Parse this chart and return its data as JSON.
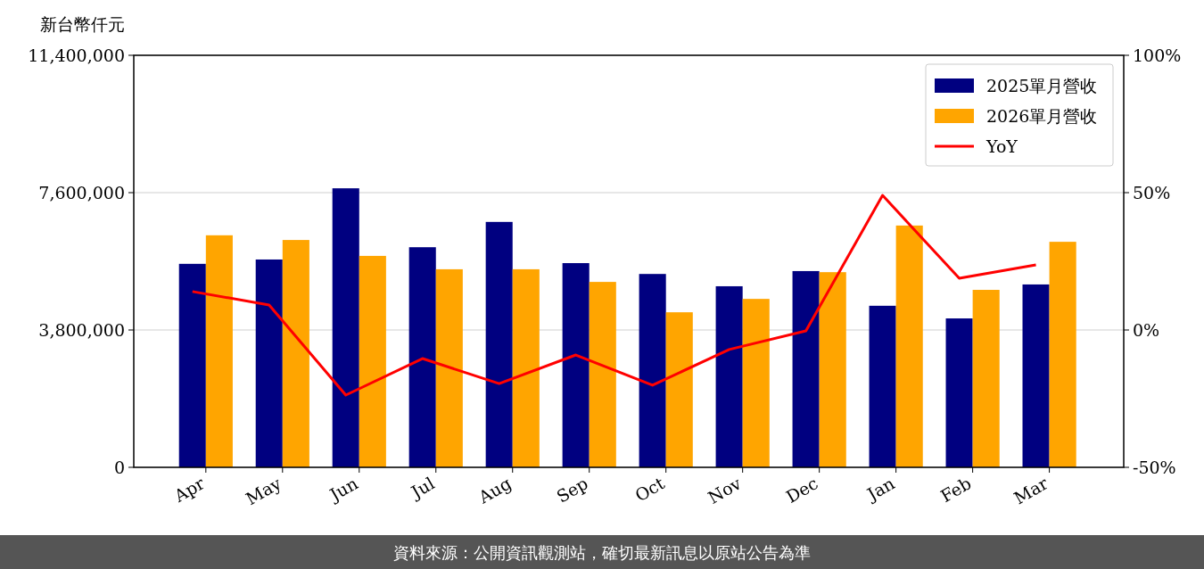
{
  "chart_data": {
    "type": "bar",
    "ylabel": "新台幣仟元",
    "categories": [
      "Apr",
      "May",
      "Jun",
      "Jul",
      "Aug",
      "Sep",
      "Oct",
      "Nov",
      "Dec",
      "Jan",
      "Feb",
      "Mar"
    ],
    "series": [
      {
        "name": "2025單月營收",
        "color": "#000080",
        "values": [
          5630000,
          5750000,
          7720000,
          6090000,
          6790000,
          5650000,
          5350000,
          5010000,
          5430000,
          4470000,
          4120000,
          5060000
        ]
      },
      {
        "name": "2026單月營收",
        "color": "#ffa500",
        "values": [
          6420000,
          6290000,
          5850000,
          5480000,
          5480000,
          5130000,
          4290000,
          4660000,
          5400000,
          6690000,
          4910000,
          6240000
        ]
      },
      {
        "name": "YoY",
        "type": "line",
        "axis": "y2",
        "color": "#ff0000",
        "values": [
          14.0,
          9.1,
          -23.7,
          -10.4,
          -19.5,
          -9.1,
          -20.1,
          -7.1,
          -0.3,
          49.0,
          18.8,
          23.7
        ]
      }
    ],
    "ylim": [
      0,
      11400000
    ],
    "yticks": [
      {
        "value": 0,
        "label": "0"
      },
      {
        "value": 3800000,
        "label": "3,800,000"
      },
      {
        "value": 7600000,
        "label": "7,600,000"
      },
      {
        "value": 11400000,
        "label": "11,400,000"
      }
    ],
    "y2lim": [
      -50,
      100
    ],
    "y2ticks": [
      {
        "value": -50,
        "label": "-50%"
      },
      {
        "value": 0,
        "label": "0%"
      },
      {
        "value": 50,
        "label": "50%"
      },
      {
        "value": 100,
        "label": "100%"
      }
    ],
    "grid": "y",
    "legend": "top right",
    "annotations": [
      "資料來源：公開資訊觀測站，確切最新訊息以原站公告為準"
    ]
  }
}
